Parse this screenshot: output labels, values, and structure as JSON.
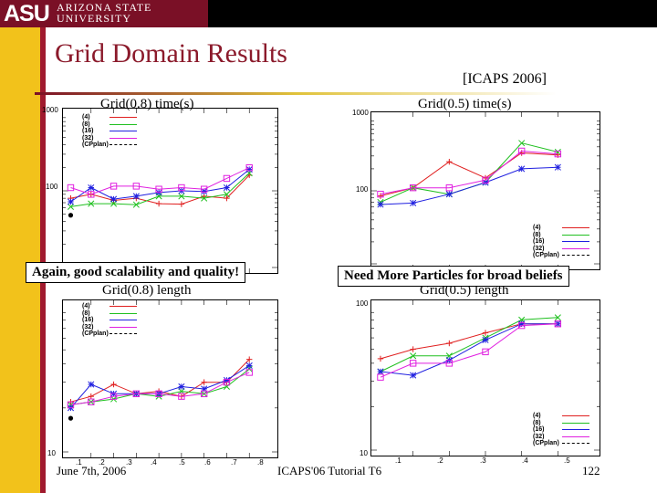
{
  "header": {
    "brand_short": "ASU",
    "brand_line1": "ARIZONA STATE",
    "brand_line2": "UNIVERSITY"
  },
  "slide": {
    "title": "Grid Domain Results",
    "citation": "[ICAPS 2006]"
  },
  "callouts": {
    "left": "Again, good scalability and quality!",
    "right": "Need More Particles for broad beliefs"
  },
  "footer": {
    "date": "June 7th, 2006",
    "event": "ICAPS'06 Tutorial T6",
    "page": "122"
  },
  "colors": {
    "series_4": "#e02020",
    "series_8": "#20c020",
    "series_16": "#2020e0",
    "series_32": "#e020e0",
    "series_cpplan": "#000000",
    "title": "#8b1a2b"
  },
  "chart_data": [
    {
      "type": "line",
      "title": "Grid(0.8) time(s)",
      "yscale": "log",
      "ylim": [
        10,
        1000
      ],
      "xlim": [
        0,
        0.9
      ],
      "y_tick_labels": [
        "1000",
        "100"
      ],
      "x_tick_labels": [],
      "legend": [
        "(4)",
        "(8)",
        "(16)",
        "(32)",
        "(CPplan)"
      ],
      "legend_position": "top-left",
      "series": [
        {
          "name": "(4)",
          "x": [
            0.01,
            0.1,
            0.2,
            0.3,
            0.4,
            0.5,
            0.6,
            0.7,
            0.8
          ],
          "y": [
            80,
            90,
            75,
            80,
            68,
            67,
            85,
            80,
            160
          ]
        },
        {
          "name": "(8)",
          "x": [
            0.01,
            0.1,
            0.2,
            0.3,
            0.4,
            0.5,
            0.6,
            0.7,
            0.8
          ],
          "y": [
            62,
            68,
            68,
            66,
            85,
            85,
            80,
            90,
            170
          ]
        },
        {
          "name": "(16)",
          "x": [
            0.01,
            0.1,
            0.2,
            0.3,
            0.4,
            0.5,
            0.6,
            0.7,
            0.8
          ],
          "y": [
            72,
            110,
            78,
            85,
            95,
            100,
            98,
            110,
            190
          ]
        },
        {
          "name": "(32)",
          "x": [
            0.01,
            0.1,
            0.2,
            0.3,
            0.4,
            0.5,
            0.6,
            0.7,
            0.8
          ],
          "y": [
            110,
            90,
            115,
            115,
            105,
            110,
            105,
            145,
            200
          ]
        },
        {
          "name": "(CPplan)",
          "x": [
            0.01
          ],
          "y": [
            48
          ]
        }
      ]
    },
    {
      "type": "line",
      "title": "Grid(0.5) time(s)",
      "yscale": "log",
      "ylim": [
        10,
        1000
      ],
      "xlim": [
        0,
        0.6
      ],
      "y_tick_labels": [
        "1000",
        "100"
      ],
      "x_tick_labels": [],
      "legend": [
        "(4)",
        "(8)",
        "(16)",
        "(32)",
        "(CPplan)"
      ],
      "legend_position": "bottom-right",
      "series": [
        {
          "name": "(4)",
          "x": [
            0.01,
            0.1,
            0.2,
            0.3,
            0.4,
            0.5
          ],
          "y": [
            85,
            110,
            250,
            150,
            330,
            310
          ]
        },
        {
          "name": "(8)",
          "x": [
            0.01,
            0.1,
            0.2,
            0.3,
            0.4,
            0.5
          ],
          "y": [
            70,
            110,
            90,
            130,
            450,
            340
          ]
        },
        {
          "name": "(16)",
          "x": [
            0.01,
            0.1,
            0.2,
            0.3,
            0.4,
            0.5
          ],
          "y": [
            65,
            68,
            90,
            130,
            200,
            210
          ]
        },
        {
          "name": "(32)",
          "x": [
            0.01,
            0.1,
            0.2,
            0.3,
            0.4,
            0.5
          ],
          "y": [
            90,
            110,
            110,
            140,
            350,
            320
          ]
        },
        {
          "name": "(CPplan)",
          "x": [],
          "y": []
        }
      ]
    },
    {
      "type": "line",
      "title": "Grid(0.8) length",
      "yscale": "log",
      "ylim": [
        10,
        100
      ],
      "xlim": [
        0,
        0.9
      ],
      "y_tick_labels": [
        "10"
      ],
      "x_tick_labels": [
        ".1",
        ".2",
        ".3",
        ".4",
        ".5",
        ".6",
        ".7",
        ".8"
      ],
      "legend": [
        "(4)",
        "(8)",
        "(16)",
        "(32)",
        "(CPplan)"
      ],
      "legend_position": "top-left",
      "series": [
        {
          "name": "(4)",
          "x": [
            0.01,
            0.1,
            0.2,
            0.3,
            0.4,
            0.5,
            0.6,
            0.7,
            0.8
          ],
          "y": [
            22,
            24,
            29,
            25,
            26,
            24,
            30,
            30,
            43
          ]
        },
        {
          "name": "(8)",
          "x": [
            0.01,
            0.1,
            0.2,
            0.3,
            0.4,
            0.5,
            0.6,
            0.7,
            0.8
          ],
          "y": [
            21,
            22,
            23,
            25,
            24,
            26,
            25,
            28,
            37
          ]
        },
        {
          "name": "(16)",
          "x": [
            0.01,
            0.1,
            0.2,
            0.3,
            0.4,
            0.5,
            0.6,
            0.7,
            0.8
          ],
          "y": [
            20,
            29,
            25,
            25,
            25,
            28,
            27,
            31,
            39
          ]
        },
        {
          "name": "(32)",
          "x": [
            0.01,
            0.1,
            0.2,
            0.3,
            0.4,
            0.5,
            0.6,
            0.7,
            0.8
          ],
          "y": [
            21,
            22,
            24,
            25,
            25,
            24,
            25,
            30,
            35
          ]
        },
        {
          "name": "(CPplan)",
          "x": [
            0.01
          ],
          "y": [
            17
          ]
        }
      ]
    },
    {
      "type": "line",
      "title": "Grid(0.5) length",
      "yscale": "log",
      "ylim": [
        10,
        100
      ],
      "xlim": [
        0,
        0.6
      ],
      "y_tick_labels": [
        "100",
        "10"
      ],
      "x_tick_labels": [
        ".1",
        ".2",
        ".3",
        ".4",
        ".5"
      ],
      "legend": [
        "(4)",
        "(8)",
        "(16)",
        "(32)",
        "(CPplan)"
      ],
      "legend_position": "bottom-right",
      "series": [
        {
          "name": "(4)",
          "x": [
            0.01,
            0.1,
            0.2,
            0.3,
            0.4,
            0.5
          ],
          "y": [
            43,
            50,
            55,
            65,
            75,
            75
          ]
        },
        {
          "name": "(8)",
          "x": [
            0.01,
            0.1,
            0.2,
            0.3,
            0.4,
            0.5
          ],
          "y": [
            35,
            45,
            45,
            60,
            80,
            83
          ]
        },
        {
          "name": "(16)",
          "x": [
            0.01,
            0.1,
            0.2,
            0.3,
            0.4,
            0.5
          ],
          "y": [
            35,
            33,
            42,
            58,
            75,
            75
          ]
        },
        {
          "name": "(32)",
          "x": [
            0.01,
            0.1,
            0.2,
            0.3,
            0.4,
            0.5
          ],
          "y": [
            32,
            40,
            40,
            48,
            73,
            75
          ]
        },
        {
          "name": "(CPplan)",
          "x": [],
          "y": []
        }
      ]
    }
  ]
}
